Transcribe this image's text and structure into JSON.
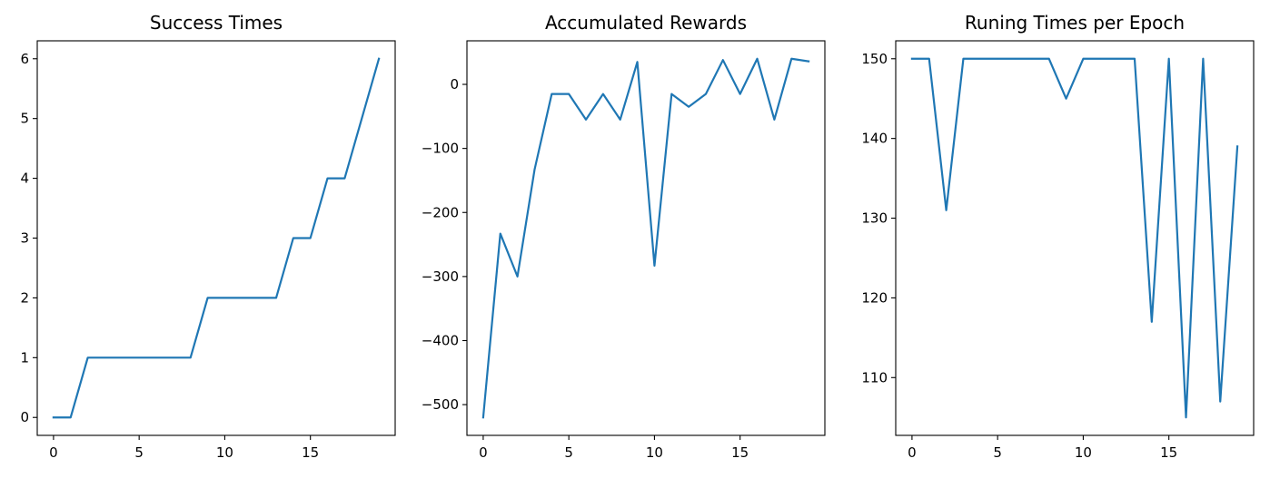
{
  "chart_data": [
    {
      "type": "line",
      "title": "Success Times",
      "xlabel": "",
      "ylabel": "",
      "x": [
        0,
        1,
        2,
        3,
        4,
        5,
        6,
        7,
        8,
        9,
        10,
        11,
        12,
        13,
        14,
        15,
        16,
        17,
        18,
        19
      ],
      "series": [
        {
          "values": [
            0,
            0,
            1,
            1,
            1,
            1,
            1,
            1,
            1,
            2,
            2,
            2,
            2,
            2,
            3,
            3,
            4,
            4,
            5,
            6
          ],
          "color": "#1f77b4"
        }
      ],
      "xlim": [
        -0.95,
        19.95
      ],
      "ylim": [
        -0.3,
        6.3
      ],
      "xticks": [
        0,
        5,
        10,
        15
      ],
      "yticks": [
        0,
        1,
        2,
        3,
        4,
        5,
        6
      ],
      "xtick_labels": [
        "0",
        "5",
        "10",
        "15"
      ],
      "ytick_labels": [
        "0",
        "1",
        "2",
        "3",
        "4",
        "5",
        "6"
      ],
      "grid": false
    },
    {
      "type": "line",
      "title": "Accumulated Rewards",
      "xlabel": "",
      "ylabel": "",
      "x": [
        0,
        1,
        2,
        3,
        4,
        5,
        6,
        7,
        8,
        9,
        10,
        11,
        12,
        13,
        14,
        15,
        16,
        17,
        18,
        19
      ],
      "series": [
        {
          "values": [
            -520,
            -233,
            -300,
            -133,
            -15,
            -15,
            -55,
            -15,
            -55,
            35,
            -283,
            -15,
            -35,
            -15,
            38,
            -15,
            40,
            -55,
            40,
            36
          ],
          "color": "#1f77b4"
        }
      ],
      "xlim": [
        -0.95,
        19.95
      ],
      "ylim": [
        -548,
        68
      ],
      "xticks": [
        0,
        5,
        10,
        15
      ],
      "yticks": [
        -500,
        -400,
        -300,
        -200,
        -100,
        0
      ],
      "xtick_labels": [
        "0",
        "5",
        "10",
        "15"
      ],
      "ytick_labels": [
        "−500",
        "−400",
        "−300",
        "−200",
        "−100",
        "0"
      ],
      "grid": false
    },
    {
      "type": "line",
      "title": "Runing Times per Epoch",
      "xlabel": "",
      "ylabel": "",
      "x": [
        0,
        1,
        2,
        3,
        4,
        5,
        6,
        7,
        8,
        9,
        10,
        11,
        12,
        13,
        14,
        15,
        16,
        17,
        18,
        19
      ],
      "series": [
        {
          "values": [
            150,
            150,
            131,
            150,
            150,
            150,
            150,
            150,
            150,
            145,
            150,
            150,
            150,
            150,
            117,
            150,
            105,
            150,
            107,
            139
          ],
          "color": "#1f77b4"
        }
      ],
      "xlim": [
        -0.95,
        19.95
      ],
      "ylim": [
        102.75,
        152.25
      ],
      "xticks": [
        0,
        5,
        10,
        15
      ],
      "yticks": [
        110,
        120,
        130,
        140,
        150
      ],
      "xtick_labels": [
        "0",
        "5",
        "10",
        "15"
      ],
      "ytick_labels": [
        "110",
        "120",
        "130",
        "140",
        "150"
      ],
      "grid": false
    }
  ]
}
